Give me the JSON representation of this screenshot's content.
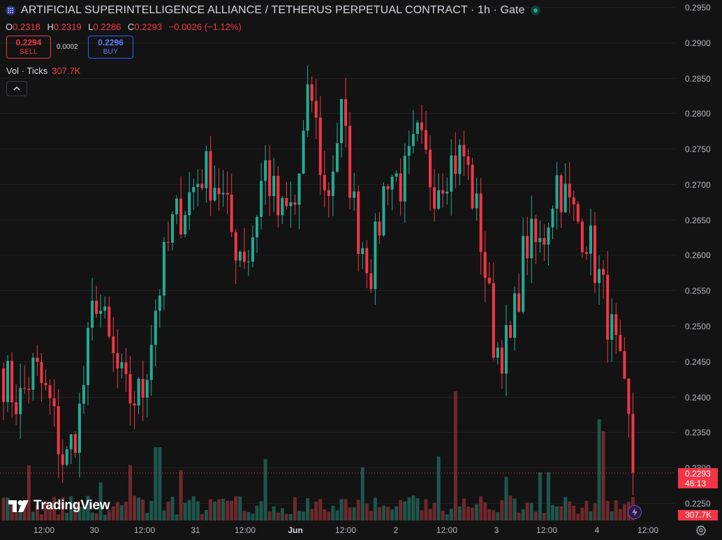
{
  "header": {
    "title": "ARTIFICIAL SUPERINTELLIGENCE ALLIANCE / TETHERUS PERPETUAL CONTRACT · 1h · Gate",
    "symbol_icon": "grid-icon",
    "status_icon": "market-open-dot"
  },
  "ohlc": {
    "o_label": "O",
    "o": "0.2318",
    "h_label": "H",
    "h": "0.2319",
    "l_label": "L",
    "l": "0.2286",
    "c_label": "C",
    "c": "0.2293",
    "change": "−0.0026 (−1.12%)"
  },
  "trade": {
    "sell_price": "0.2294",
    "sell_label": "SELL",
    "spread": "0.0002",
    "buy_price": "0.2296",
    "buy_label": "BUY"
  },
  "volume": {
    "label": "Vol · Ticks",
    "value": "307.7K"
  },
  "price_axis": [
    "0.2950",
    "0.2900",
    "0.2850",
    "0.2800",
    "0.2750",
    "0.2700",
    "0.2650",
    "0.2600",
    "0.2550",
    "0.2500",
    "0.2450",
    "0.2400",
    "0.2350",
    "0.2300",
    "0.2250"
  ],
  "time_axis": [
    "12:00",
    "30",
    "12:00",
    "31",
    "12:00",
    "Jun",
    "12:00",
    "2",
    "12:00",
    "3",
    "12:00",
    "4",
    "12:00"
  ],
  "last_price": {
    "value": "0.2293",
    "countdown": "46:13"
  },
  "last_volume": "307.7K",
  "branding": {
    "logo_text": "TradingView"
  },
  "colors": {
    "up": "#22ab94",
    "down": "#f23645",
    "background": "#131313"
  },
  "chart_data": {
    "type": "candlestick",
    "interval": "1h",
    "ylim": [
      0.2225,
      0.2965
    ],
    "y_ticks": [
      0.295,
      0.29,
      0.285,
      0.28,
      0.275,
      0.27,
      0.265,
      0.26,
      0.255,
      0.25,
      0.245,
      0.24,
      0.235,
      0.23,
      0.225
    ],
    "x_labels": [
      "12:00",
      "30",
      "12:00",
      "31",
      "12:00",
      "Jun",
      "12:00",
      "2",
      "12:00",
      "3",
      "12:00",
      "4",
      "12:00"
    ],
    "anchors": [
      [
        0.243,
        0.245
      ],
      [
        0.239,
        0.23
      ],
      [
        0.244,
        0.246
      ],
      [
        0.239,
        0.233
      ],
      [
        0.23,
        0.231
      ],
      [
        0.238,
        0.262
      ],
      [
        0.255,
        0.247
      ],
      [
        0.246,
        0.246
      ],
      [
        0.24,
        0.233
      ],
      [
        0.24,
        0.259
      ],
      [
        0.254,
        0.282
      ],
      [
        0.264,
        0.272
      ],
      [
        0.268,
        0.277
      ],
      [
        0.272,
        0.278
      ],
      [
        0.27,
        0.267
      ],
      [
        0.262,
        0.265
      ],
      [
        0.26,
        0.27
      ],
      [
        0.273,
        0.269
      ],
      [
        0.265,
        0.259
      ],
      [
        0.267,
        0.275
      ],
      [
        0.284,
        0.265
      ],
      [
        0.267,
        0.276
      ],
      [
        0.28,
        0.27
      ],
      [
        0.264,
        0.262
      ],
      [
        0.258,
        0.262
      ],
      [
        0.272,
        0.262
      ],
      [
        0.27,
        0.277
      ],
      [
        0.276,
        0.272
      ],
      [
        0.27,
        0.268
      ],
      [
        0.273,
        0.272
      ],
      [
        0.274,
        0.26
      ],
      [
        0.264,
        0.249
      ],
      [
        0.247,
        0.243
      ],
      [
        0.247,
        0.25
      ],
      [
        0.262,
        0.266
      ],
      [
        0.261,
        0.264
      ],
      [
        0.271,
        0.264
      ],
      [
        0.266,
        0.258
      ],
      [
        0.263,
        0.254
      ],
      [
        0.255,
        0.25
      ],
      [
        0.245,
        0.233
      ],
      [
        0.232,
        0.2293
      ]
    ],
    "volume_last": "307.7K"
  }
}
